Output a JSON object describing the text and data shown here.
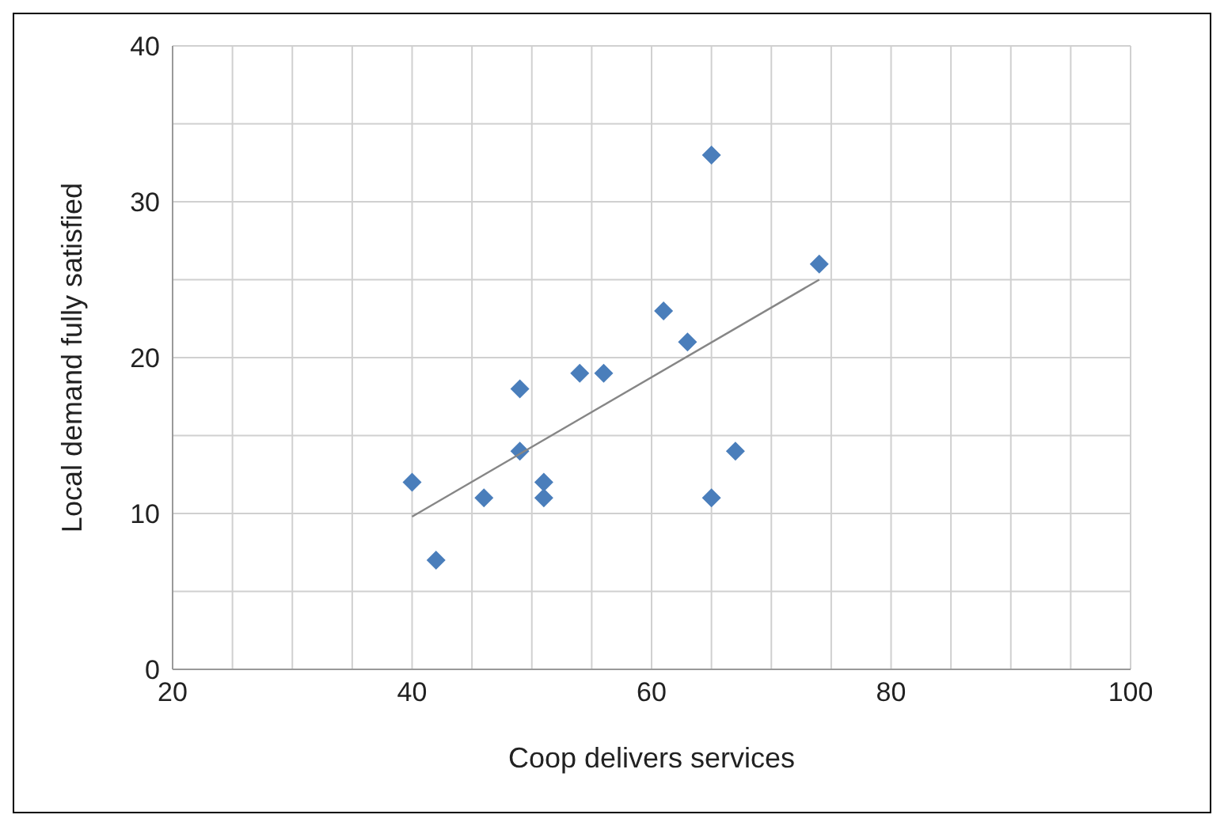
{
  "chart_data": {
    "type": "scatter",
    "xlabel": "Coop delivers services",
    "ylabel": "Local demand fully satisfied",
    "xlim": [
      20,
      100
    ],
    "xticks": [
      20,
      {
        "value": 25,
        "label": null
      },
      {
        "value": 30,
        "label": null
      },
      {
        "value": 35,
        "label": null
      },
      40,
      {
        "value": 45,
        "label": null
      },
      {
        "value": 50,
        "label": null
      },
      {
        "value": 55,
        "label": null
      },
      60,
      {
        "value": 65,
        "label": null
      },
      {
        "value": 70,
        "label": null
      },
      {
        "value": 75,
        "label": null
      },
      80,
      {
        "value": 85,
        "label": null
      },
      {
        "value": 90,
        "label": null
      },
      {
        "value": 95,
        "label": null
      },
      100
    ],
    "ylim": [
      0,
      40
    ],
    "yticks": [
      0,
      {
        "value": 5,
        "label": null
      },
      10,
      {
        "value": 15,
        "label": null
      },
      20,
      {
        "value": 25,
        "label": null
      },
      30,
      {
        "value": 35,
        "label": null
      },
      40
    ],
    "grid": true,
    "marker": "diamond",
    "series": [
      {
        "color": "#4a7ebb",
        "x": [
          40,
          42,
          46,
          49,
          49,
          51,
          51,
          54,
          56,
          61,
          63,
          65,
          65,
          67,
          74
        ],
        "values": [
          12,
          7,
          11,
          18,
          14,
          12,
          11,
          19,
          19,
          23,
          21,
          33,
          11,
          14,
          26
        ]
      },
      {
        "type": "line",
        "color": "#868686",
        "marker": "none",
        "x": [
          40,
          74
        ],
        "values": [
          9.8,
          25
        ]
      }
    ]
  }
}
